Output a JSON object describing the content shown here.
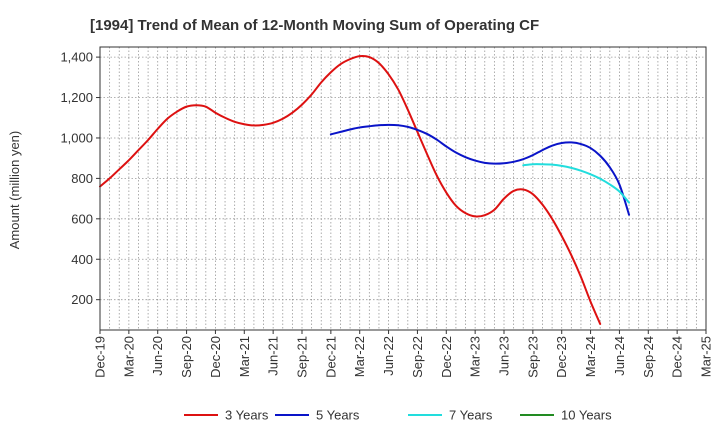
{
  "chart_data": {
    "type": "line",
    "title": "[1994]  Trend of Mean of 12-Month Moving Sum of Operating CF",
    "xlabel": "",
    "ylabel": "Amount (million yen)",
    "ylim": [
      50,
      1450
    ],
    "yticks": [
      200,
      400,
      600,
      800,
      1000,
      1200,
      1400
    ],
    "ytick_labels": [
      "200",
      "400",
      "600",
      "800",
      "1,000",
      "1,200",
      "1,400"
    ],
    "x_tick_labels": [
      "Dec-19",
      "Mar-20",
      "Jun-20",
      "Sep-20",
      "Dec-20",
      "Mar-21",
      "Jun-21",
      "Sep-21",
      "Dec-21",
      "Mar-22",
      "Jun-22",
      "Sep-22",
      "Dec-22",
      "Mar-23",
      "Jun-23",
      "Sep-23",
      "Dec-23",
      "Mar-24",
      "Jun-24",
      "Sep-24",
      "Dec-24",
      "Mar-25"
    ],
    "grid": true,
    "legend_position": "bottom",
    "series": [
      {
        "name": "3 Years",
        "color": "#dd1111",
        "points": [
          [
            0,
            760
          ],
          [
            1,
            800
          ],
          [
            2,
            845
          ],
          [
            3,
            890
          ],
          [
            4,
            940
          ],
          [
            5,
            990
          ],
          [
            6,
            1045
          ],
          [
            7,
            1095
          ],
          [
            8,
            1130
          ],
          [
            9,
            1155
          ],
          [
            10,
            1162
          ],
          [
            11,
            1155
          ],
          [
            12,
            1125
          ],
          [
            13,
            1100
          ],
          [
            14,
            1080
          ],
          [
            15,
            1068
          ],
          [
            16,
            1062
          ],
          [
            17,
            1065
          ],
          [
            18,
            1075
          ],
          [
            19,
            1095
          ],
          [
            20,
            1125
          ],
          [
            21,
            1165
          ],
          [
            22,
            1215
          ],
          [
            23,
            1275
          ],
          [
            24,
            1325
          ],
          [
            25,
            1365
          ],
          [
            26,
            1390
          ],
          [
            27,
            1405
          ],
          [
            28,
            1400
          ],
          [
            29,
            1370
          ],
          [
            30,
            1315
          ],
          [
            31,
            1240
          ],
          [
            32,
            1140
          ],
          [
            33,
            1030
          ],
          [
            34,
            920
          ],
          [
            35,
            815
          ],
          [
            36,
            730
          ],
          [
            37,
            665
          ],
          [
            38,
            628
          ],
          [
            39,
            612
          ],
          [
            40,
            618
          ],
          [
            41,
            645
          ],
          [
            42,
            700
          ],
          [
            43,
            738
          ],
          [
            44,
            745
          ],
          [
            45,
            722
          ],
          [
            46,
            670
          ],
          [
            47,
            600
          ],
          [
            48,
            515
          ],
          [
            49,
            420
          ],
          [
            50,
            312
          ],
          [
            51,
            190
          ],
          [
            52,
            80
          ]
        ]
      },
      {
        "name": "5 Years",
        "color": "#0a14c8",
        "points": [
          [
            24,
            1018
          ],
          [
            25,
            1030
          ],
          [
            26,
            1042
          ],
          [
            27,
            1052
          ],
          [
            28,
            1058
          ],
          [
            29,
            1063
          ],
          [
            30,
            1065
          ],
          [
            31,
            1063
          ],
          [
            32,
            1055
          ],
          [
            33,
            1040
          ],
          [
            34,
            1020
          ],
          [
            35,
            992
          ],
          [
            36,
            958
          ],
          [
            37,
            928
          ],
          [
            38,
            905
          ],
          [
            39,
            888
          ],
          [
            40,
            877
          ],
          [
            41,
            873
          ],
          [
            42,
            875
          ],
          [
            43,
            882
          ],
          [
            44,
            895
          ],
          [
            45,
            915
          ],
          [
            46,
            940
          ],
          [
            47,
            962
          ],
          [
            48,
            975
          ],
          [
            49,
            978
          ],
          [
            50,
            970
          ],
          [
            51,
            950
          ],
          [
            52,
            912
          ],
          [
            53,
            855
          ],
          [
            54,
            770
          ],
          [
            55,
            620
          ]
        ]
      },
      {
        "name": "7 Years",
        "color": "#22dddd",
        "points": [
          [
            44,
            865
          ],
          [
            45,
            870
          ],
          [
            46,
            870
          ],
          [
            47,
            868
          ],
          [
            48,
            862
          ],
          [
            49,
            852
          ],
          [
            50,
            838
          ],
          [
            51,
            820
          ],
          [
            52,
            798
          ],
          [
            53,
            770
          ],
          [
            54,
            735
          ],
          [
            55,
            680
          ]
        ]
      },
      {
        "name": "10 Years",
        "color": "#228b22",
        "points": []
      }
    ]
  }
}
